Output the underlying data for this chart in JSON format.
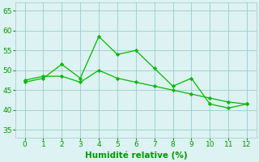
{
  "line1_x": [
    0,
    1,
    2,
    3,
    4,
    5,
    6,
    7,
    8,
    9,
    10,
    11,
    12
  ],
  "line1_y": [
    47,
    48,
    51.5,
    48,
    58.5,
    54,
    55,
    50.5,
    46,
    48,
    41.5,
    40.5,
    41.5
  ],
  "line2_x": [
    0,
    1,
    2,
    3,
    4,
    5,
    6,
    7,
    8,
    9,
    10,
    11,
    12
  ],
  "line2_y": [
    47.5,
    48.5,
    48.5,
    47.0,
    50.0,
    48.0,
    47.0,
    46.0,
    45.0,
    44.0,
    43.0,
    42.0,
    41.5
  ],
  "line_color": "#00bb00",
  "bg_color": "#ddf2f2",
  "grid_color": "#99cccc",
  "xlabel": "Humidité relative (%)",
  "xlabel_color": "#009900",
  "xlabel_fontsize": 7.5,
  "tick_color": "#009900",
  "tick_fontsize": 6.5,
  "ylim": [
    33,
    67
  ],
  "xlim": [
    -0.5,
    12.5
  ],
  "yticks": [
    35,
    40,
    45,
    50,
    55,
    60,
    65
  ],
  "xticks": [
    0,
    1,
    2,
    3,
    4,
    5,
    6,
    7,
    8,
    9,
    10,
    11,
    12
  ]
}
